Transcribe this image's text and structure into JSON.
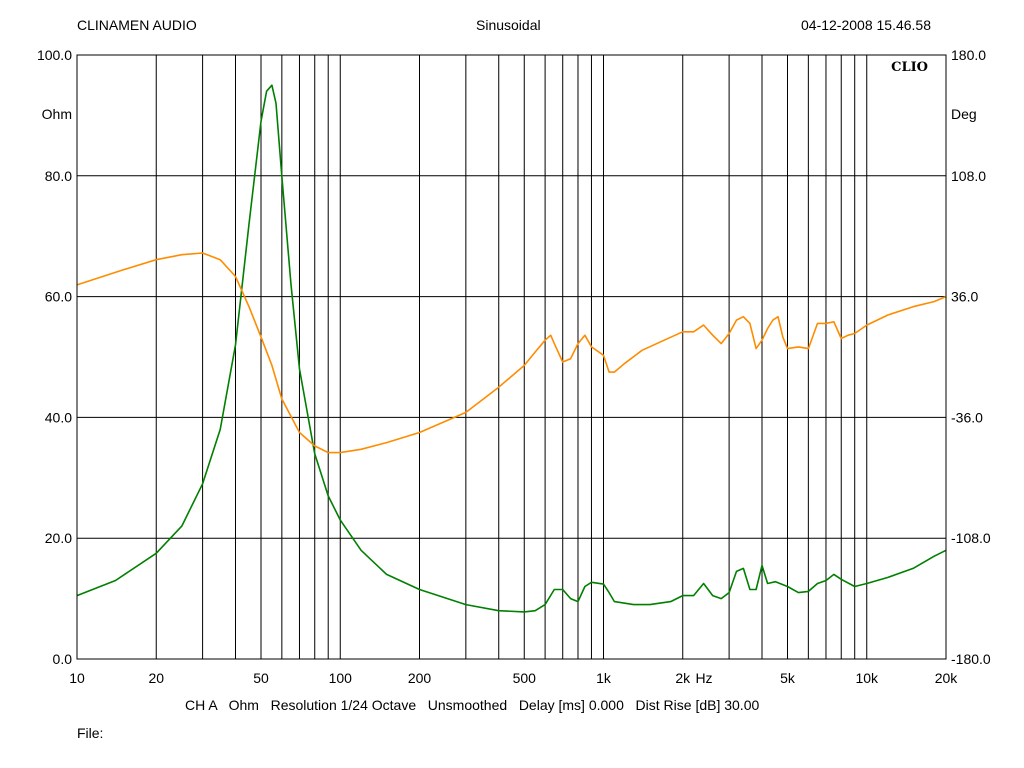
{
  "header": {
    "left": "CLINAMEN AUDIO",
    "center": "Sinusoidal",
    "right": "04-12-2008 15.46.58"
  },
  "brand": "CLIO",
  "footer": {
    "info": "CH A   Ohm   Resolution 1/24 Octave   Unsmoothed   Delay [ms] 0.000   Dist Rise [dB] 30.00",
    "file_label": "File:"
  },
  "colors": {
    "background": "#ffffff",
    "grid": "#000000",
    "impedance": "#008000",
    "phase": "#ff8c00"
  },
  "chart_data": {
    "type": "line",
    "x_scale": "log",
    "xlim": [
      10,
      20000
    ],
    "ylim": [
      0,
      100
    ],
    "y2lim": [
      -180,
      180
    ],
    "grid": true,
    "xlabel": "Hz",
    "ylabel": "Ohm",
    "y2label": "Deg",
    "x_ticks": [
      {
        "value": 10,
        "label": "10"
      },
      {
        "value": 20,
        "label": "20"
      },
      {
        "value": 50,
        "label": "50"
      },
      {
        "value": 100,
        "label": "100"
      },
      {
        "value": 200,
        "label": "200"
      },
      {
        "value": 500,
        "label": "500"
      },
      {
        "value": 1000,
        "label": "1k"
      },
      {
        "value": 2000,
        "label": "2k"
      },
      {
        "value": 5000,
        "label": "5k"
      },
      {
        "value": 10000,
        "label": "10k"
      },
      {
        "value": 20000,
        "label": "20k"
      }
    ],
    "y_ticks": [
      "0.0",
      "20.0",
      "40.0",
      "60.0",
      "80.0",
      "100.0"
    ],
    "y2_ticks": [
      "-180.0",
      "-108.0",
      "-36.0",
      "36.0",
      "108.0",
      "180.0"
    ],
    "series": [
      {
        "axis": "left",
        "color": "#008000",
        "points": [
          [
            10,
            10.5
          ],
          [
            14,
            13
          ],
          [
            20,
            17.5
          ],
          [
            25,
            22
          ],
          [
            30,
            29
          ],
          [
            35,
            38
          ],
          [
            40,
            52
          ],
          [
            45,
            72
          ],
          [
            50,
            89
          ],
          [
            52.5,
            94
          ],
          [
            55,
            95
          ],
          [
            57,
            92
          ],
          [
            60,
            80
          ],
          [
            65,
            62
          ],
          [
            70,
            48
          ],
          [
            80,
            34
          ],
          [
            90,
            27
          ],
          [
            100,
            23
          ],
          [
            120,
            18
          ],
          [
            150,
            14
          ],
          [
            200,
            11.5
          ],
          [
            300,
            9
          ],
          [
            400,
            8
          ],
          [
            500,
            7.8
          ],
          [
            550,
            8
          ],
          [
            600,
            9
          ],
          [
            650,
            11.5
          ],
          [
            700,
            11.5
          ],
          [
            750,
            10
          ],
          [
            800,
            9.5
          ],
          [
            850,
            12
          ],
          [
            900,
            12.7
          ],
          [
            1000,
            12.4
          ],
          [
            1050,
            11
          ],
          [
            1100,
            9.5
          ],
          [
            1300,
            9
          ],
          [
            1500,
            9
          ],
          [
            1800,
            9.5
          ],
          [
            2000,
            10.5
          ],
          [
            2200,
            10.5
          ],
          [
            2400,
            12.5
          ],
          [
            2600,
            10.5
          ],
          [
            2800,
            10
          ],
          [
            3000,
            11
          ],
          [
            3200,
            14.5
          ],
          [
            3400,
            15
          ],
          [
            3600,
            11.5
          ],
          [
            3800,
            11.5
          ],
          [
            4000,
            15.5
          ],
          [
            4200,
            12.5
          ],
          [
            4500,
            12.8
          ],
          [
            5000,
            12
          ],
          [
            5500,
            11
          ],
          [
            6000,
            11.2
          ],
          [
            6500,
            12.5
          ],
          [
            7000,
            13
          ],
          [
            7500,
            14
          ],
          [
            8000,
            13.2
          ],
          [
            9000,
            12
          ],
          [
            10000,
            12.5
          ],
          [
            12000,
            13.5
          ],
          [
            15000,
            15
          ],
          [
            18000,
            17
          ],
          [
            20000,
            18
          ]
        ]
      },
      {
        "axis": "right",
        "color": "#ff8c00",
        "points": [
          [
            10,
            43
          ],
          [
            15,
            52
          ],
          [
            20,
            58
          ],
          [
            25,
            61
          ],
          [
            30,
            62
          ],
          [
            35,
            58
          ],
          [
            40,
            48
          ],
          [
            45,
            30
          ],
          [
            50,
            12
          ],
          [
            55,
            -5
          ],
          [
            60,
            -25
          ],
          [
            70,
            -45
          ],
          [
            80,
            -53
          ],
          [
            90,
            -57
          ],
          [
            100,
            -57
          ],
          [
            120,
            -55
          ],
          [
            150,
            -51
          ],
          [
            200,
            -45
          ],
          [
            300,
            -33
          ],
          [
            400,
            -18
          ],
          [
            500,
            -5
          ],
          [
            550,
            3
          ],
          [
            600,
            10
          ],
          [
            630,
            13
          ],
          [
            650,
            8
          ],
          [
            700,
            -3
          ],
          [
            750,
            -1
          ],
          [
            800,
            8
          ],
          [
            850,
            13
          ],
          [
            900,
            6
          ],
          [
            1000,
            1
          ],
          [
            1050,
            -9
          ],
          [
            1100,
            -9
          ],
          [
            1200,
            -4
          ],
          [
            1400,
            4
          ],
          [
            1700,
            10
          ],
          [
            2000,
            15
          ],
          [
            2200,
            15
          ],
          [
            2400,
            19
          ],
          [
            2600,
            13
          ],
          [
            2800,
            8
          ],
          [
            3000,
            14
          ],
          [
            3200,
            22
          ],
          [
            3400,
            24
          ],
          [
            3600,
            20
          ],
          [
            3800,
            5
          ],
          [
            4000,
            10
          ],
          [
            4200,
            17
          ],
          [
            4400,
            22
          ],
          [
            4600,
            24
          ],
          [
            4800,
            12
          ],
          [
            5000,
            5
          ],
          [
            5500,
            6
          ],
          [
            6000,
            5
          ],
          [
            6500,
            20
          ],
          [
            7000,
            20
          ],
          [
            7500,
            21
          ],
          [
            8000,
            11
          ],
          [
            8500,
            13
          ],
          [
            9000,
            14
          ],
          [
            10000,
            19
          ],
          [
            12000,
            25
          ],
          [
            15000,
            30
          ],
          [
            18000,
            33
          ],
          [
            20000,
            36
          ]
        ]
      }
    ]
  }
}
